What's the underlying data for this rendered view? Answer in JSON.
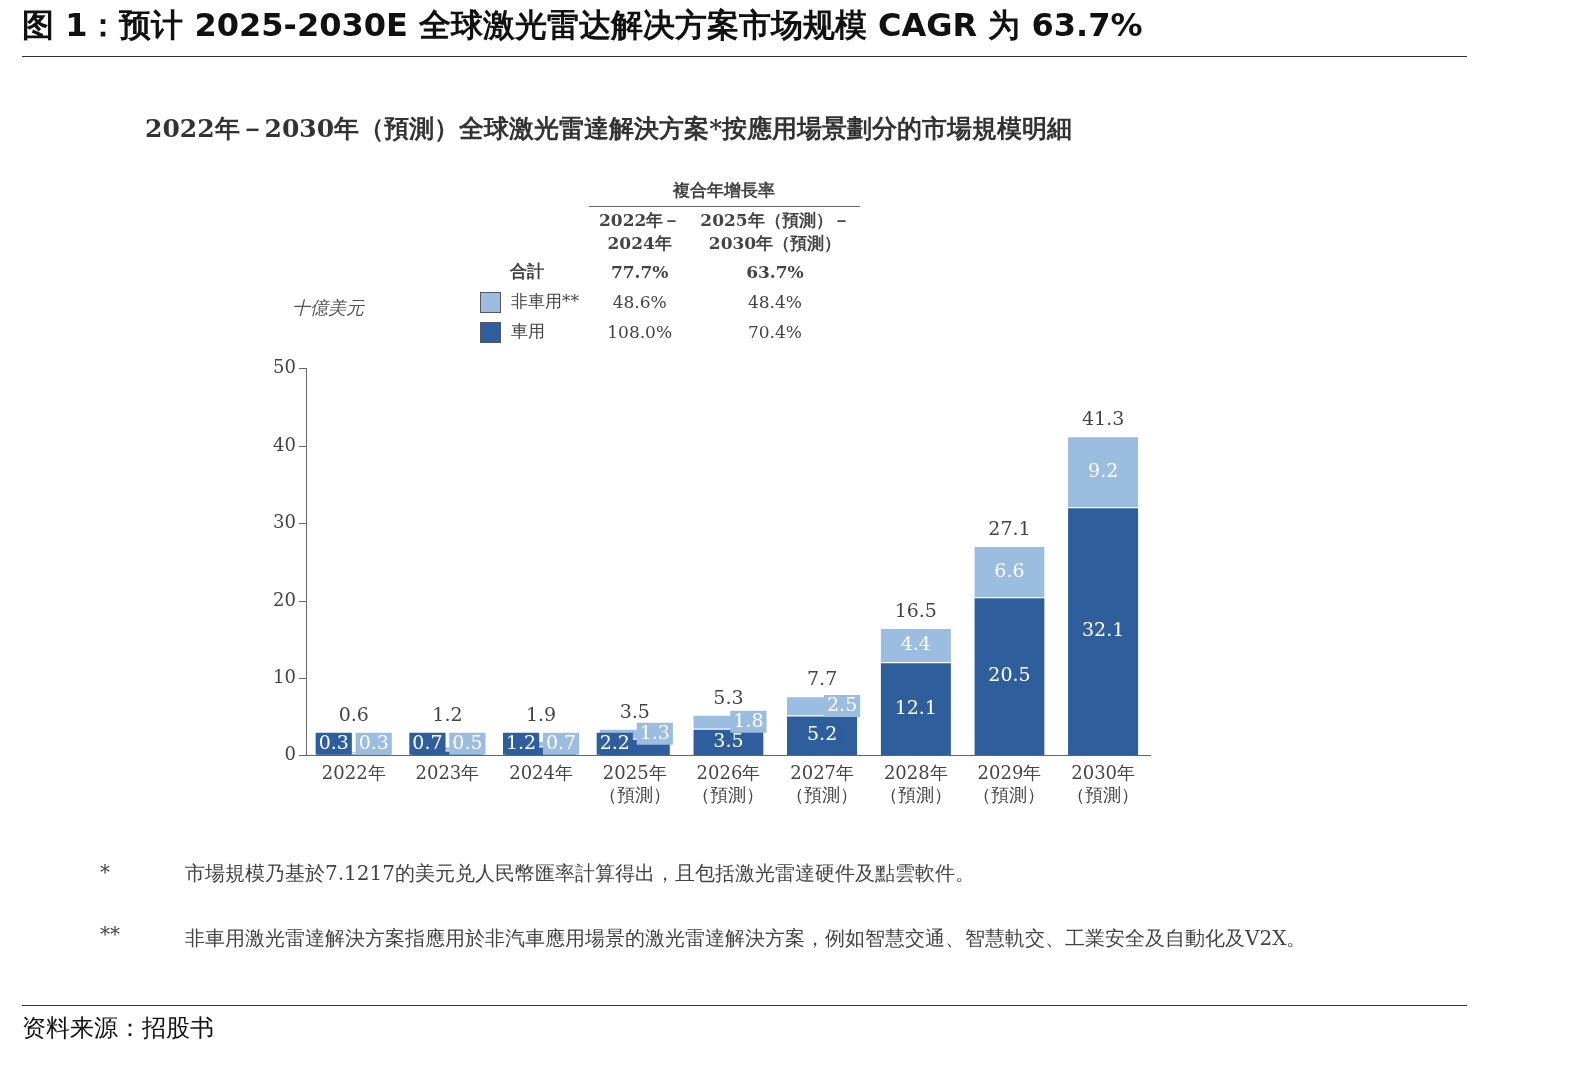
{
  "chart_data": {
    "type": "bar",
    "stacked": true,
    "title": "图 1：预计 2025-2030E 全球激光雷达解决方案市场规模 CAGR 为 63.7%",
    "subtitle": "2022年－2030年（預測）全球激光雷達解決方案*按應用場景劃分的市場規模明細",
    "ylabel": "十億美元",
    "categories": [
      "2022年",
      "2023年",
      "2024年",
      "2025年（預測）",
      "2026年（預測）",
      "2027年（預測）",
      "2028年（預測）",
      "2029年（預測）",
      "2030年（預測）"
    ],
    "series": [
      {
        "name": "車用",
        "color": "#2e5f9c",
        "values": [
          0.3,
          0.7,
          1.2,
          2.2,
          3.5,
          5.2,
          12.1,
          20.5,
          32.1
        ]
      },
      {
        "name": "非車用**",
        "color": "#9bbde0",
        "values": [
          0.3,
          0.5,
          0.7,
          1.3,
          1.8,
          2.5,
          4.4,
          6.6,
          9.2
        ]
      }
    ],
    "totals": [
      "0.6",
      "1.2",
      "1.9",
      "3.5",
      "5.3",
      "7.7",
      "16.5",
      "27.1",
      "41.3"
    ],
    "data_labels": true,
    "ylim": [
      0,
      50
    ],
    "yticks": [
      0,
      10,
      20,
      30,
      40,
      50
    ],
    "grid": false,
    "legend": "top left",
    "annotations": [
      "複合年增長率",
      "2022年－2024年",
      "2025年（預測）－2030年（預測）",
      "合計",
      "77.7%",
      "63.7%",
      "48.6%",
      "48.4%",
      "108.0%",
      "70.4%",
      "*",
      "市場規模乃基於7.1217的美元兑人民幣匯率計算得出，且包括激光雷達硬件及點雲軟件。",
      "**",
      "非車用激光雷達解決方案指應用於非汽車應用場景的激光雷達解決方案，例如智慧交通、智慧軌交、工業安全及自動化及V2X。",
      "资料来源：招股书"
    ]
  }
}
